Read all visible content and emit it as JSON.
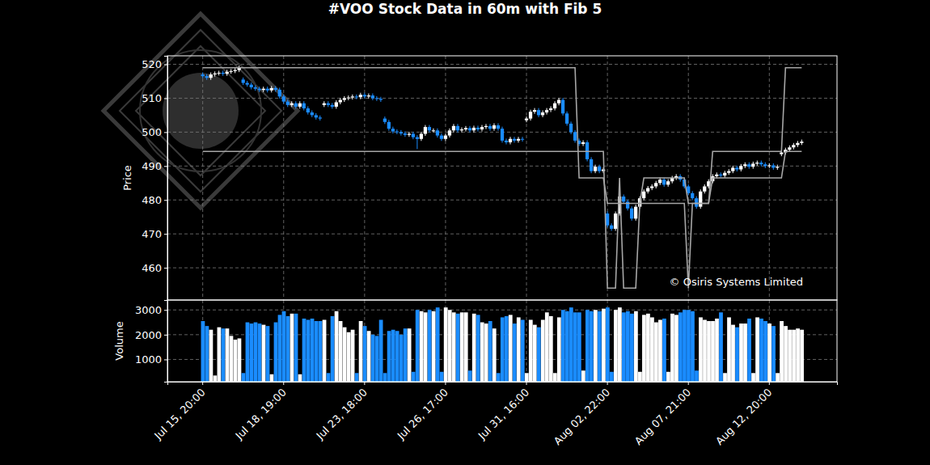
{
  "chart_data": [
    {
      "type": "candlestick",
      "title": "#VOO Stock Data in 60m with Fib 5",
      "y_label": "Price",
      "annotation": "© Osiris Systems Limited",
      "ylim": [
        450.5,
        522.5
      ],
      "yticks": [
        460,
        470,
        480,
        490,
        500,
        510,
        520
      ],
      "grid": true,
      "open": [
        517.0,
        516.5,
        516.0,
        517.0,
        517.3,
        517.5,
        517.2,
        517.8,
        518.0,
        518.3,
        515.5,
        514.5,
        514.0,
        513.2,
        512.8,
        512.4,
        512.8,
        512.3,
        513.0,
        512.5,
        510.5,
        509.0,
        508.0,
        508.5,
        507.5,
        508.5,
        507.0,
        505.8,
        505.0,
        504.3,
        508.0,
        508.5,
        508.0,
        507.5,
        508.8,
        509.5,
        510.0,
        510.2,
        510.5,
        510.3,
        511.0,
        510.5,
        510.8,
        510.0,
        509.8,
        504.0,
        503.0,
        501.0,
        500.2,
        500.0,
        499.6,
        499.2,
        499.5,
        498.5,
        498.0,
        499.5,
        501.5,
        500.5,
        500.5,
        499.0,
        498.0,
        499.0,
        500.5,
        501.8,
        500.5,
        500.8,
        501.2,
        500.5,
        501.3,
        500.8,
        501.5,
        501.8,
        501.0,
        502.0,
        501.0,
        497.5,
        497.0,
        498.0,
        497.5,
        498.0,
        503.5,
        504.0,
        506.0,
        506.5,
        505.0,
        505.8,
        506.5,
        507.0,
        508.5,
        509.5,
        505.5,
        502.5,
        500.0,
        497.5,
        496.5,
        497.0,
        492.0,
        488.5,
        489.8,
        488.5,
        476.0,
        472.5,
        471.5,
        476.0,
        481.0,
        479.5,
        477.5,
        474.5,
        478.0,
        480.5,
        482.5,
        483.5,
        484.0,
        485.0,
        486.0,
        484.5,
        485.5,
        486.5,
        487.0,
        486.0,
        484.0,
        482.0,
        480.5,
        478.0,
        482.5,
        484.0,
        485.5,
        487.0,
        487.5,
        487.2,
        488.0,
        488.5,
        489.5,
        489.0,
        490.0,
        490.5,
        489.8,
        490.7,
        491.0,
        490.5,
        490.0,
        490.2,
        489.5,
        493.5,
        494.0,
        494.8,
        495.5,
        496.2,
        496.8
      ],
      "high": [
        517.6,
        517.1,
        517.6,
        517.9,
        518.1,
        518.1,
        518.4,
        518.6,
        518.9,
        519.6,
        516.1,
        515.1,
        514.6,
        513.8,
        513.4,
        513.4,
        513.4,
        513.6,
        513.6,
        513.1,
        511.1,
        509.6,
        509.1,
        509.1,
        509.1,
        509.1,
        507.6,
        506.4,
        505.6,
        504.9,
        509.1,
        509.1,
        508.6,
        509.4,
        510.1,
        510.6,
        510.8,
        511.1,
        511.1,
        511.6,
        511.6,
        511.4,
        511.4,
        510.6,
        510.4,
        504.6,
        503.6,
        501.6,
        500.8,
        500.6,
        500.2,
        500.1,
        500.1,
        499.1,
        500.1,
        502.1,
        502.1,
        501.1,
        501.1,
        499.6,
        499.6,
        501.1,
        502.4,
        502.4,
        501.4,
        501.8,
        501.8,
        501.9,
        501.9,
        502.1,
        502.4,
        502.4,
        502.6,
        502.6,
        501.6,
        498.1,
        498.6,
        498.6,
        498.6,
        498.6,
        504.6,
        506.6,
        507.1,
        507.1,
        506.4,
        507.1,
        507.6,
        509.1,
        510.1,
        510.1,
        506.1,
        503.1,
        500.6,
        498.1,
        497.6,
        497.6,
        492.6,
        490.4,
        490.4,
        489.6,
        476.6,
        473.1,
        476.6,
        481.6,
        481.6,
        480.1,
        478.1,
        478.6,
        481.1,
        483.1,
        484.1,
        484.6,
        485.6,
        486.6,
        486.6,
        486.1,
        487.1,
        487.6,
        487.6,
        486.6,
        484.6,
        482.6,
        481.1,
        483.1,
        484.6,
        486.1,
        487.6,
        488.1,
        488.1,
        488.6,
        489.1,
        490.1,
        490.1,
        490.6,
        491.1,
        491.1,
        491.3,
        491.6,
        491.6,
        491.1,
        490.8,
        490.8,
        490.4,
        494.6,
        495.4,
        496.1,
        496.8,
        497.4,
        497.8
      ],
      "low": [
        515.9,
        515.4,
        515.4,
        516.4,
        516.7,
        516.6,
        516.6,
        517.2,
        517.4,
        517.7,
        513.9,
        513.4,
        512.6,
        512.2,
        511.8,
        511.8,
        511.7,
        511.7,
        511.9,
        509.9,
        508.4,
        507.4,
        507.4,
        506.9,
        506.9,
        506.4,
        505.2,
        504.4,
        503.7,
        503.4,
        507.4,
        507.4,
        506.9,
        506.9,
        508.2,
        508.9,
        509.4,
        509.6,
        509.7,
        509.7,
        509.9,
        509.9,
        509.4,
        509.2,
        508.9,
        502.4,
        500.4,
        499.6,
        499.4,
        499.0,
        498.6,
        498.6,
        497.9,
        495.0,
        497.4,
        498.9,
        499.9,
        499.9,
        498.4,
        497.4,
        497.4,
        498.4,
        499.9,
        499.9,
        499.9,
        500.2,
        499.9,
        499.9,
        500.2,
        500.2,
        500.9,
        500.4,
        500.4,
        500.4,
        496.9,
        496.4,
        496.4,
        496.9,
        496.9,
        497.2,
        502.9,
        503.4,
        505.4,
        504.4,
        504.4,
        505.2,
        505.9,
        506.4,
        507.9,
        504.9,
        501.9,
        499.4,
        496.9,
        495.9,
        495.9,
        491.4,
        487.9,
        487.9,
        487.9,
        487.9,
        471.9,
        470.9,
        470.9,
        475.4,
        478.9,
        476.9,
        473.9,
        473.9,
        477.4,
        479.9,
        481.9,
        482.9,
        483.4,
        484.4,
        483.9,
        483.9,
        484.9,
        485.9,
        485.4,
        483.4,
        481.4,
        479.9,
        477.4,
        477.4,
        481.9,
        483.4,
        484.9,
        486.4,
        486.6,
        486.6,
        487.4,
        487.9,
        488.4,
        488.4,
        489.4,
        489.2,
        489.2,
        490.1,
        489.9,
        489.4,
        489.4,
        488.9,
        488.9,
        492.9,
        493.4,
        494.2,
        494.9,
        495.6,
        496.2
      ],
      "close": [
        516.5,
        516.0,
        517.0,
        517.3,
        517.5,
        517.2,
        517.8,
        518.0,
        518.3,
        519.0,
        514.5,
        514.0,
        513.2,
        512.8,
        512.4,
        512.8,
        512.3,
        513.0,
        512.5,
        510.5,
        509.0,
        508.0,
        508.5,
        507.5,
        508.5,
        507.0,
        505.8,
        505.0,
        504.3,
        504.0,
        508.5,
        508.0,
        507.5,
        508.8,
        509.5,
        510.0,
        510.2,
        510.5,
        510.3,
        511.0,
        510.5,
        510.8,
        510.0,
        509.8,
        509.5,
        503.0,
        501.0,
        500.2,
        500.0,
        499.6,
        499.2,
        499.5,
        498.5,
        498.0,
        499.5,
        501.5,
        500.5,
        500.5,
        499.0,
        498.0,
        499.0,
        500.5,
        501.8,
        500.5,
        500.8,
        501.2,
        500.5,
        501.3,
        500.8,
        501.5,
        501.8,
        501.0,
        502.0,
        501.0,
        497.5,
        497.0,
        498.0,
        497.5,
        498.0,
        497.8,
        504.0,
        506.0,
        506.5,
        505.0,
        505.8,
        506.5,
        507.0,
        508.5,
        509.5,
        505.5,
        502.5,
        500.0,
        497.5,
        496.5,
        497.0,
        492.0,
        488.5,
        489.8,
        488.5,
        489.0,
        472.5,
        471.5,
        476.0,
        481.0,
        479.5,
        477.5,
        474.5,
        478.0,
        480.5,
        482.5,
        483.5,
        484.0,
        485.0,
        486.0,
        484.5,
        485.5,
        486.5,
        487.0,
        486.0,
        484.0,
        482.0,
        480.5,
        478.0,
        482.5,
        484.0,
        485.5,
        487.0,
        487.5,
        487.2,
        488.0,
        488.5,
        489.5,
        489.0,
        490.0,
        490.5,
        489.8,
        490.7,
        491.0,
        490.5,
        490.0,
        490.2,
        489.5,
        489.8,
        494.0,
        494.8,
        495.5,
        496.2,
        496.8,
        497.2
      ],
      "series": [
        {
          "type": "line",
          "color": "#a6a6a6",
          "values": [
            519,
            519,
            519,
            519,
            519,
            519,
            519,
            519,
            519,
            519,
            519,
            519,
            519,
            519,
            519,
            519,
            519,
            519,
            519,
            519,
            519,
            519,
            519,
            519,
            519,
            519,
            519,
            519,
            519,
            519,
            519,
            519,
            519,
            519,
            519,
            519,
            519,
            519,
            519,
            519,
            519,
            519,
            519,
            519,
            519,
            519,
            519,
            519,
            519,
            519,
            519,
            519,
            519,
            519,
            519,
            519,
            519,
            519,
            519,
            519,
            519,
            519,
            519,
            519,
            519,
            519,
            519,
            519,
            519,
            519,
            519,
            519,
            519,
            519,
            519,
            519,
            519,
            519,
            519,
            519,
            519,
            519,
            519,
            519,
            519,
            519,
            519,
            519,
            519,
            519,
            519,
            519,
            519,
            486.5,
            486.5,
            486.5,
            486.5,
            486.5,
            486.5,
            486.5,
            479,
            479,
            479,
            479,
            479,
            479,
            479,
            479,
            479,
            486.5,
            486.5,
            486.5,
            486.5,
            486.5,
            486.5,
            486.5,
            486.5,
            486.5,
            486.5,
            486.5,
            479,
            479,
            479,
            479,
            479,
            479,
            494.3,
            494.3,
            494.3,
            494.3,
            494.3,
            494.3,
            494.3,
            494.3,
            494.3,
            494.3,
            494.3,
            494.3,
            494.3,
            494.3,
            494.3,
            494.3,
            494.3,
            494.3,
            519,
            519,
            519,
            519,
            519
          ]
        },
        {
          "type": "line",
          "color": "#a6a6a6",
          "values": [
            494.3,
            494.3,
            494.3,
            494.3,
            494.3,
            494.3,
            494.3,
            494.3,
            494.3,
            494.3,
            494.3,
            494.3,
            494.3,
            494.3,
            494.3,
            494.3,
            494.3,
            494.3,
            494.3,
            494.3,
            494.3,
            494.3,
            494.3,
            494.3,
            494.3,
            494.3,
            494.3,
            494.3,
            494.3,
            494.3,
            494.3,
            494.3,
            494.3,
            494.3,
            494.3,
            494.3,
            494.3,
            494.3,
            494.3,
            494.3,
            494.3,
            494.3,
            494.3,
            494.3,
            494.3,
            494.3,
            494.3,
            494.3,
            494.3,
            494.3,
            494.3,
            494.3,
            494.3,
            494.3,
            494.3,
            494.3,
            494.3,
            494.3,
            494.3,
            494.3,
            494.3,
            494.3,
            494.3,
            494.3,
            494.3,
            494.3,
            494.3,
            494.3,
            494.3,
            494.3,
            494.3,
            494.3,
            494.3,
            494.3,
            494.3,
            494.3,
            494.3,
            494.3,
            494.3,
            494.3,
            494.3,
            494.3,
            494.3,
            494.3,
            494.3,
            494.3,
            494.3,
            494.3,
            494.3,
            494.3,
            494.3,
            494.3,
            494.3,
            494.3,
            494.3,
            494.3,
            494.3,
            494.3,
            494.3,
            494.3,
            454,
            454,
            454,
            486.5,
            454,
            454,
            454,
            454,
            479,
            479,
            479,
            479,
            479,
            479,
            479,
            479,
            479,
            479,
            479,
            479,
            454,
            479,
            479,
            479,
            479,
            479,
            486.5,
            486.5,
            486.5,
            486.5,
            486.5,
            486.5,
            486.5,
            486.5,
            486.5,
            486.5,
            486.5,
            486.5,
            486.5,
            486.5,
            486.5,
            486.5,
            486.5,
            486.5,
            494.3,
            494.3,
            494.3,
            494.3,
            494.3
          ]
        }
      ]
    },
    {
      "type": "bar",
      "y_label": "Volume",
      "ylim": [
        100,
        3400
      ],
      "yticks": [
        1000,
        2000,
        3000
      ],
      "grid": true,
      "categories": [
        "Jul 15, 20:00",
        null,
        null,
        null,
        null,
        null,
        null,
        null,
        null,
        null,
        null,
        null,
        null,
        null,
        null,
        null,
        null,
        null,
        null,
        null,
        "Jul 18, 19:00",
        null,
        null,
        null,
        null,
        null,
        null,
        null,
        null,
        null,
        null,
        null,
        null,
        null,
        null,
        null,
        null,
        null,
        null,
        null,
        "Jul 23, 18:00",
        null,
        null,
        null,
        null,
        null,
        null,
        null,
        null,
        null,
        null,
        null,
        null,
        null,
        null,
        null,
        null,
        null,
        null,
        null,
        "Jul 26, 17:00",
        null,
        null,
        null,
        null,
        null,
        null,
        null,
        null,
        null,
        null,
        null,
        null,
        null,
        null,
        null,
        null,
        null,
        null,
        null,
        "Jul 31, 16:00",
        null,
        null,
        null,
        null,
        null,
        null,
        null,
        null,
        null,
        null,
        null,
        null,
        null,
        null,
        null,
        null,
        null,
        null,
        null,
        "Aug 02, 22:00",
        null,
        null,
        null,
        null,
        null,
        null,
        null,
        null,
        null,
        null,
        null,
        null,
        null,
        null,
        null,
        null,
        null,
        null,
        null,
        "Aug 07, 21:00",
        null,
        null,
        null,
        null,
        null,
        null,
        null,
        null,
        null,
        null,
        null,
        null,
        null,
        null,
        null,
        null,
        null,
        null,
        null,
        "Aug 12, 20:00",
        null,
        null,
        null,
        null,
        null,
        null,
        null,
        null
      ],
      "values": [
        2550,
        2350,
        2200,
        350,
        2300,
        2250,
        2250,
        1950,
        1800,
        1850,
        450,
        2500,
        2450,
        2500,
        2450,
        2400,
        2350,
        400,
        2500,
        2800,
        2950,
        2750,
        2850,
        2850,
        400,
        2650,
        2600,
        2650,
        2550,
        2550,
        2600,
        450,
        2750,
        2950,
        2550,
        2300,
        2100,
        2200,
        450,
        2550,
        2350,
        2150,
        2000,
        1950,
        2600,
        450,
        2150,
        2200,
        2150,
        2000,
        2250,
        2250,
        500,
        3000,
        2950,
        2900,
        3000,
        2950,
        3100,
        500,
        3100,
        3000,
        2900,
        2850,
        2900,
        2900,
        550,
        2850,
        2800,
        2500,
        2450,
        2550,
        2250,
        450,
        2700,
        2750,
        2800,
        2450,
        2700,
        2600,
        450,
        2600,
        2400,
        2300,
        2600,
        2900,
        2750,
        450,
        2700,
        3000,
        2950,
        3100,
        2900,
        2900,
        550,
        3000,
        2950,
        3000,
        2950,
        3050,
        3100,
        500,
        3000,
        3100,
        2900,
        2950,
        2850,
        2950,
        500,
        2800,
        2850,
        2700,
        2500,
        2600,
        2650,
        500,
        2850,
        2800,
        2900,
        3000,
        3000,
        2950,
        550,
        2700,
        2600,
        2550,
        2550,
        2650,
        2900,
        450,
        2700,
        2400,
        2300,
        2450,
        2450,
        2650,
        450,
        2700,
        2650,
        2550,
        2450,
        2350,
        450,
        2550,
        2350,
        2200,
        2200,
        2250,
        2200
      ]
    }
  ]
}
